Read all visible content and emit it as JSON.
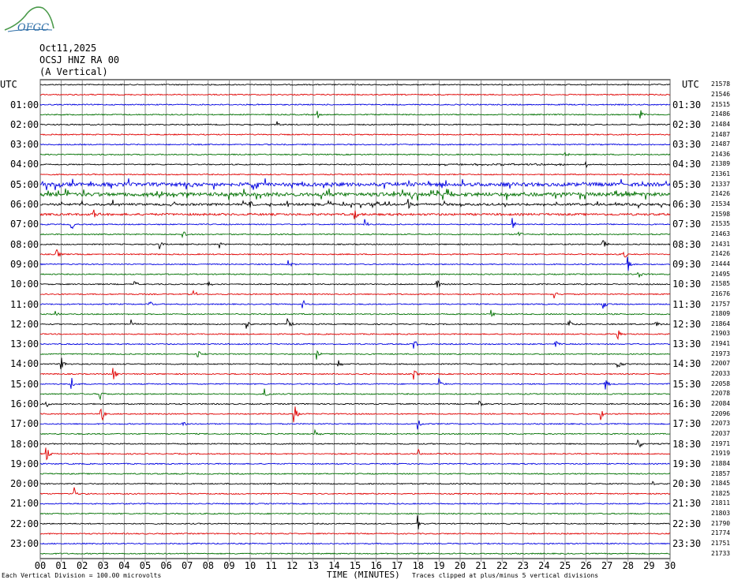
{
  "header": {
    "logo_text": "OFGC",
    "date": "Oct11,2025",
    "station": "OCSJ HNZ RA 00",
    "component": "(A Vertical)"
  },
  "chart_data": {
    "type": "line",
    "left_axis_label": "UTC",
    "right_axis_label": "UTC",
    "left_hour_labels": [
      "01:00",
      "02:00",
      "03:00",
      "04:00",
      "05:00",
      "06:00",
      "07:00",
      "08:00",
      "09:00",
      "10:00",
      "11:00",
      "12:00",
      "13:00",
      "14:00",
      "15:00",
      "16:00",
      "17:00",
      "18:00",
      "19:00",
      "20:00",
      "21:00",
      "22:00",
      "23:00"
    ],
    "right_hour_labels": [
      "01:30",
      "02:30",
      "03:30",
      "04:30",
      "05:30",
      "06:30",
      "07:30",
      "08:30",
      "09:30",
      "10:30",
      "11:30",
      "12:30",
      "13:30",
      "14:30",
      "15:30",
      "16:30",
      "17:30",
      "18:30",
      "19:30",
      "20:30",
      "21:30",
      "22:30",
      "23:30"
    ],
    "trace_offsets": [
      "21578",
      "21546",
      "21515",
      "21486",
      "21484",
      "21487",
      "21487",
      "21436",
      "21389",
      "21361",
      "21337",
      "21426",
      "21534",
      "21598",
      "21535",
      "21463",
      "21431",
      "21426",
      "21444",
      "21495",
      "21585",
      "21676",
      "21757",
      "21809",
      "21864",
      "21903",
      "21941",
      "21973",
      "22007",
      "22033",
      "22058",
      "22078",
      "22084",
      "22096",
      "22073",
      "22037",
      "21971",
      "21919",
      "21884",
      "21857",
      "21845",
      "21825",
      "21811",
      "21803",
      "21790",
      "21774",
      "21751",
      "21733"
    ],
    "x_ticks": [
      "00",
      "01",
      "02",
      "03",
      "04",
      "05",
      "06",
      "07",
      "08",
      "09",
      "10",
      "11",
      "12",
      "13",
      "14",
      "15",
      "16",
      "17",
      "18",
      "19",
      "20",
      "21",
      "22",
      "23",
      "24",
      "25",
      "26",
      "27",
      "28",
      "29",
      "30"
    ],
    "xlabel": "TIME (MINUTES)",
    "xlim": [
      0,
      30
    ],
    "trace_count": 48,
    "trace_colors": [
      "#000000",
      "#e00000",
      "#0000e0",
      "#007000"
    ],
    "grid": true,
    "scale_note": "Each Vertical Division = 100.00 microvolts",
    "clip_note": "Traces clipped at plus/minus 5 vertical divisions",
    "events": [
      {
        "trace": 3,
        "minute": 13.2,
        "amp": 7
      },
      {
        "trace": 3,
        "minute": 28.6,
        "amp": 8
      },
      {
        "trace": 4,
        "minute": 11.3,
        "amp": 5
      },
      {
        "trace": 7,
        "minute": 25.0,
        "amp": 5
      },
      {
        "trace": 8,
        "minute": 26.0,
        "amp": 4
      },
      {
        "trace": 11,
        "minute": 19.0,
        "amp": 6
      },
      {
        "trace": 12,
        "minute": 3.5,
        "amp": 8
      },
      {
        "trace": 12,
        "minute": 10.0,
        "amp": 8
      },
      {
        "trace": 12,
        "minute": 17.5,
        "amp": 9
      },
      {
        "trace": 13,
        "minute": 2.5,
        "amp": 12
      },
      {
        "trace": 13,
        "minute": 15.0,
        "amp": 7
      },
      {
        "trace": 14,
        "minute": 1.5,
        "amp": 7
      },
      {
        "trace": 14,
        "minute": 15.5,
        "amp": 7
      },
      {
        "trace": 14,
        "minute": 22.5,
        "amp": 9
      },
      {
        "trace": 15,
        "minute": 6.8,
        "amp": 6
      },
      {
        "trace": 15,
        "minute": 22.8,
        "amp": 7
      },
      {
        "trace": 16,
        "minute": 5.7,
        "amp": 9
      },
      {
        "trace": 16,
        "minute": 8.5,
        "amp": 7
      },
      {
        "trace": 16,
        "minute": 26.8,
        "amp": 10
      },
      {
        "trace": 17,
        "minute": 0.8,
        "amp": 6
      },
      {
        "trace": 17,
        "minute": 27.8,
        "amp": 8
      },
      {
        "trace": 18,
        "minute": 11.8,
        "amp": 8
      },
      {
        "trace": 18,
        "minute": 28.0,
        "amp": 10
      },
      {
        "trace": 19,
        "minute": 28.5,
        "amp": 7
      },
      {
        "trace": 20,
        "minute": 4.5,
        "amp": 5
      },
      {
        "trace": 20,
        "minute": 8.0,
        "amp": 8
      },
      {
        "trace": 20,
        "minute": 18.9,
        "amp": 7
      },
      {
        "trace": 21,
        "minute": 7.3,
        "amp": 6
      },
      {
        "trace": 21,
        "minute": 24.5,
        "amp": 6
      },
      {
        "trace": 22,
        "minute": 5.2,
        "amp": 6
      },
      {
        "trace": 22,
        "minute": 12.5,
        "amp": 7
      },
      {
        "trace": 22,
        "minute": 26.8,
        "amp": 9
      },
      {
        "trace": 23,
        "minute": 0.7,
        "amp": 7
      },
      {
        "trace": 23,
        "minute": 21.5,
        "amp": 7
      },
      {
        "trace": 24,
        "minute": 4.3,
        "amp": 9
      },
      {
        "trace": 24,
        "minute": 9.8,
        "amp": 9
      },
      {
        "trace": 24,
        "minute": 11.8,
        "amp": 8
      },
      {
        "trace": 24,
        "minute": 25.2,
        "amp": 8
      },
      {
        "trace": 24,
        "minute": 29.3,
        "amp": 8
      },
      {
        "trace": 25,
        "minute": 27.5,
        "amp": 9
      },
      {
        "trace": 26,
        "minute": 17.8,
        "amp": 8
      },
      {
        "trace": 26,
        "minute": 24.5,
        "amp": 7
      },
      {
        "trace": 27,
        "minute": 7.5,
        "amp": 8
      },
      {
        "trace": 27,
        "minute": 13.2,
        "amp": 8
      },
      {
        "trace": 28,
        "minute": 1.0,
        "amp": 9
      },
      {
        "trace": 28,
        "minute": 14.2,
        "amp": 8
      },
      {
        "trace": 28,
        "minute": 27.5,
        "amp": 9
      },
      {
        "trace": 29,
        "minute": 3.5,
        "amp": 10
      },
      {
        "trace": 29,
        "minute": 17.8,
        "amp": 7
      },
      {
        "trace": 30,
        "minute": 1.5,
        "amp": 8
      },
      {
        "trace": 30,
        "minute": 19.0,
        "amp": 8
      },
      {
        "trace": 30,
        "minute": 26.9,
        "amp": 9
      },
      {
        "trace": 31,
        "minute": 2.8,
        "amp": 16
      },
      {
        "trace": 31,
        "minute": 10.7,
        "amp": 8
      },
      {
        "trace": 32,
        "minute": 0.3,
        "amp": 5
      },
      {
        "trace": 32,
        "minute": 20.9,
        "amp": 6
      },
      {
        "trace": 33,
        "minute": 2.9,
        "amp": 16
      },
      {
        "trace": 33,
        "minute": 12.1,
        "amp": 14
      },
      {
        "trace": 33,
        "minute": 26.7,
        "amp": 8
      },
      {
        "trace": 34,
        "minute": 6.8,
        "amp": 6
      },
      {
        "trace": 34,
        "minute": 18.0,
        "amp": 8
      },
      {
        "trace": 35,
        "minute": 13.1,
        "amp": 6
      },
      {
        "trace": 36,
        "minute": 28.5,
        "amp": 8
      },
      {
        "trace": 37,
        "minute": 0.3,
        "amp": 10
      },
      {
        "trace": 37,
        "minute": 18.0,
        "amp": 6
      },
      {
        "trace": 40,
        "minute": 29.2,
        "amp": 5
      },
      {
        "trace": 41,
        "minute": 1.6,
        "amp": 10
      },
      {
        "trace": 44,
        "minute": 18.0,
        "amp": 11
      }
    ]
  }
}
